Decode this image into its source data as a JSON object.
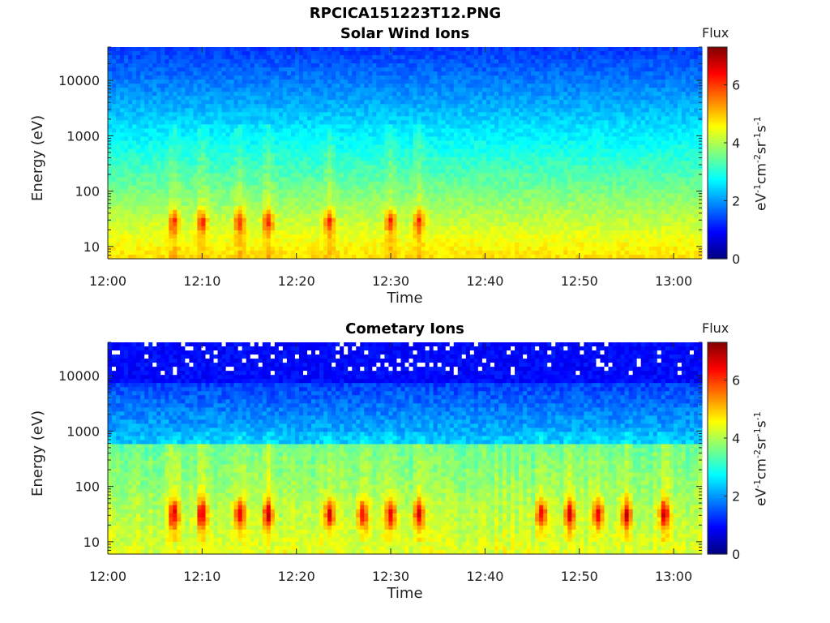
{
  "figure": {
    "title": "RPCICA151223T12.PNG"
  },
  "chart_data": [
    {
      "type": "heatmap",
      "title": "Solar Wind Ions",
      "xlabel": "Time",
      "ylabel": "Energy (eV)",
      "yscale": "log",
      "ylim": [
        6,
        40000
      ],
      "x_tick_labels": [
        "12:00",
        "12:10",
        "12:20",
        "12:30",
        "12:40",
        "12:50",
        "13:00"
      ],
      "y_tick_labels": [
        "10",
        "100",
        "1000",
        "10000"
      ],
      "x_range_minutes": [
        0,
        63
      ],
      "colorbar": {
        "title": "Flux",
        "label_prefix": "eV",
        "label_parts": [
          "-1",
          "cm",
          "-2",
          "sr",
          "-1",
          "s",
          "-1"
        ],
        "range": [
          0,
          7.3
        ],
        "ticks": [
          0,
          2,
          4,
          6
        ],
        "colormap": "jet"
      },
      "enhancement_times_min": [
        7,
        10,
        14,
        17,
        23.5,
        30,
        33
      ],
      "colormap_colors": [
        "#00008f",
        "#0000ff",
        "#00ffff",
        "#ffff00",
        "#ff0000",
        "#800000"
      ]
    },
    {
      "type": "heatmap",
      "title": "Cometary Ions",
      "xlabel": "Time",
      "ylabel": "Energy (eV)",
      "yscale": "log",
      "ylim": [
        6,
        40000
      ],
      "x_tick_labels": [
        "12:00",
        "12:10",
        "12:20",
        "12:30",
        "12:40",
        "12:50",
        "13:00"
      ],
      "y_tick_labels": [
        "10",
        "100",
        "1000",
        "10000"
      ],
      "x_range_minutes": [
        0,
        63
      ],
      "colorbar": {
        "title": "Flux",
        "label_prefix": "eV",
        "label_parts": [
          "-1",
          "cm",
          "-2",
          "sr",
          "-1",
          "s",
          "-1"
        ],
        "range": [
          0,
          7.3
        ],
        "ticks": [
          0,
          2,
          4,
          6
        ],
        "colormap": "jet"
      },
      "enhancement_times_min": [
        7,
        10,
        14,
        17,
        23.5,
        27,
        30,
        33,
        46,
        49,
        52,
        55,
        59
      ],
      "colormap_colors": [
        "#00008f",
        "#0000ff",
        "#00ffff",
        "#ffff00",
        "#ff0000",
        "#800000"
      ]
    }
  ]
}
